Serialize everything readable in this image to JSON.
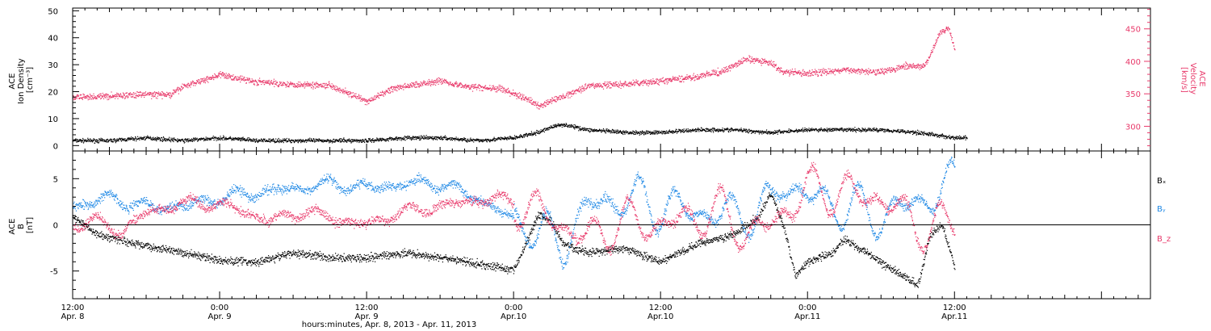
{
  "colors": {
    "black": "#000000",
    "pink": "#e8396a",
    "blue": "#1e88e5",
    "axis": "#000000"
  },
  "xaxis": {
    "range_hours": [
      0,
      88
    ],
    "ticks": [
      {
        "h": 0,
        "top": "12:00",
        "bottom": "Apr. 8"
      },
      {
        "h": 12,
        "top": "0:00",
        "bottom": "Apr. 9"
      },
      {
        "h": 24,
        "top": "12:00",
        "bottom": "Apr. 9"
      },
      {
        "h": 36,
        "top": "0:00",
        "bottom": "Apr.10"
      },
      {
        "h": 48,
        "top": "12:00",
        "bottom": "Apr.10"
      },
      {
        "h": 60,
        "top": "0:00",
        "bottom": "Apr.11"
      },
      {
        "h": 72,
        "top": "12:00",
        "bottom": "Apr.11"
      }
    ],
    "label": "hours:minutes, Apr.  8, 2013 - Apr. 11, 2013"
  },
  "chart_data": [
    {
      "type": "scatter",
      "panel": "top",
      "ylabel_left": [
        "ACE",
        "Ion Density",
        "[cm⁻³]"
      ],
      "ylabel_right": [
        "ACE",
        "Velocity",
        "[km/s]"
      ],
      "ylim_left": [
        -2,
        51
      ],
      "yticks_left": [
        0,
        10,
        20,
        30,
        40,
        50
      ],
      "ylim_right": [
        262,
        482
      ],
      "yticks_right": [
        300,
        350,
        400,
        450
      ],
      "series": [
        {
          "name": "Density",
          "color": "#000000",
          "axis": "left",
          "noise": 0.6,
          "x": [
            0,
            3,
            6,
            9,
            12,
            15,
            18,
            21,
            24,
            27,
            30,
            33,
            36,
            38,
            39,
            40,
            42,
            45,
            48,
            51,
            54,
            57,
            60,
            63,
            66,
            69,
            72,
            73
          ],
          "y": [
            2,
            2,
            3,
            2,
            3,
            2,
            2,
            2,
            2,
            3,
            3,
            2,
            3,
            5,
            7,
            8,
            6,
            5,
            5,
            6,
            6,
            5,
            6,
            6,
            6,
            5,
            3,
            3
          ]
        },
        {
          "name": "Velocity",
          "color": "#e8396a",
          "axis": "right",
          "noise": 4,
          "x": [
            0,
            3,
            6,
            8,
            9,
            12,
            15,
            18,
            21,
            23,
            24,
            26,
            28,
            30,
            32,
            35,
            37,
            38,
            40,
            42,
            45,
            48,
            51,
            53,
            55,
            57,
            58,
            60,
            63,
            66,
            68,
            69.5,
            70,
            70.8,
            71.5,
            72
          ],
          "y": [
            345,
            347,
            350,
            349,
            362,
            380,
            369,
            365,
            364,
            347,
            338,
            358,
            365,
            371,
            362,
            358,
            343,
            332,
            346,
            363,
            365,
            370,
            377,
            385,
            404,
            398,
            384,
            382,
            387,
            385,
            393,
            393,
            410,
            445,
            452,
            420
          ]
        }
      ]
    },
    {
      "type": "scatter",
      "panel": "bottom",
      "ylabel_left": [
        "ACE",
        "B",
        "[nT]"
      ],
      "ylim": [
        -8,
        8
      ],
      "yticks": [
        -5,
        0,
        5
      ],
      "zero_line": true,
      "legend": [
        "Bₓ",
        "Bᵧ",
        "B_z"
      ],
      "series": [
        {
          "name": "Bₓ",
          "color": "#000000",
          "noise": 0.35,
          "osc": 0,
          "x": [
            0,
            2,
            5,
            9,
            12,
            15,
            18,
            21,
            24,
            27,
            30,
            33,
            36,
            37,
            38,
            39,
            40,
            42,
            45,
            48,
            51,
            54,
            56,
            57,
            58,
            59,
            60,
            62,
            63,
            66,
            69,
            70,
            71,
            72
          ],
          "y": [
            1,
            -1,
            -2,
            -3,
            -3.8,
            -4,
            -3,
            -3.5,
            -3.5,
            -3,
            -3.5,
            -4.2,
            -4.8,
            -2,
            1.2,
            0.5,
            -2,
            -3,
            -2.5,
            -4,
            -2,
            -1,
            1,
            3.5,
            0,
            -5.5,
            -4,
            -3,
            -1.5,
            -4,
            -6.5,
            -1,
            0,
            -4.5
          ]
        },
        {
          "name": "Bᵧ",
          "color": "#1e88e5",
          "noise": 0.4,
          "osc": 2.8,
          "x": [
            0,
            3,
            6,
            9,
            12,
            15,
            18,
            21,
            24,
            27,
            30,
            33,
            36,
            37,
            38,
            40,
            42,
            45,
            48,
            51,
            54,
            57,
            58,
            60,
            63,
            66,
            69,
            72
          ],
          "y": [
            2,
            3,
            2,
            2,
            3,
            3.5,
            4,
            4.5,
            4,
            4.5,
            4.5,
            3,
            0.5,
            0.5,
            -1,
            -2,
            2,
            3,
            2,
            1.5,
            1,
            2,
            5,
            3,
            2,
            1,
            2.5,
            4.5
          ]
        },
        {
          "name": "B_z",
          "color": "#e8396a",
          "noise": 0.4,
          "osc": 2.6,
          "x": [
            0,
            2,
            4,
            6,
            8,
            10,
            13,
            16,
            19,
            22,
            24,
            27,
            30,
            33,
            35,
            36,
            38,
            40,
            42,
            45,
            48,
            51,
            53,
            55,
            57,
            60,
            63,
            66,
            68,
            69,
            70,
            72
          ],
          "y": [
            0,
            0.5,
            -0.8,
            1.5,
            2,
            2.5,
            2,
            0.5,
            1.5,
            0.5,
            0,
            1.5,
            2,
            2.8,
            2.8,
            2.5,
            1.5,
            0,
            -1.5,
            0.5,
            0,
            1,
            1.5,
            -1,
            0,
            4,
            3.5,
            3,
            1,
            0,
            -0.5,
            0.5
          ]
        }
      ]
    }
  ]
}
